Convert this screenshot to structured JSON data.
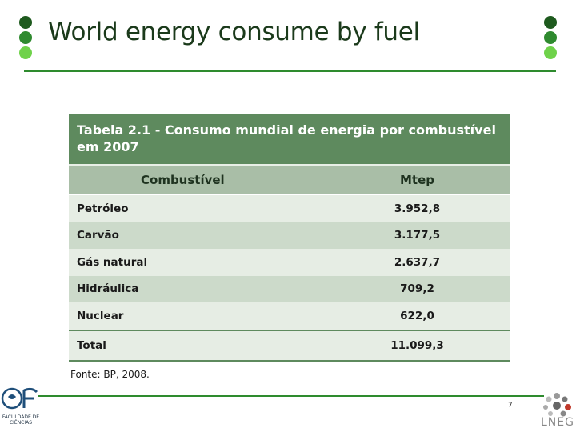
{
  "slide": {
    "title": "World energy consume by fuel",
    "page_number": "7"
  },
  "table": {
    "caption": "Tabela 2.1 - Consumo mundial de energia por combustível em 2007",
    "headers": [
      "Combustível",
      "Mtep"
    ],
    "rows": [
      {
        "fuel": "Petróleo",
        "value": "3.952,8"
      },
      {
        "fuel": "Carvão",
        "value": "3.177,5"
      },
      {
        "fuel": "Gás natural",
        "value": "2.637,7"
      },
      {
        "fuel": "Hidráulica",
        "value": "709,2"
      },
      {
        "fuel": "Nuclear",
        "value": "622,0"
      }
    ],
    "total": {
      "label": "Total",
      "value": "11.099,3"
    },
    "source": "Fonte: BP, 2008."
  },
  "logos": {
    "left_text": "FACULDADE DE CIÊNCIAS",
    "right_text": "LNEG"
  },
  "colors": {
    "accent_dark": "#1e5a1e",
    "accent_mid": "#2f8a2f",
    "accent_light": "#6fd24a",
    "table_header": "#5e8a5e"
  }
}
